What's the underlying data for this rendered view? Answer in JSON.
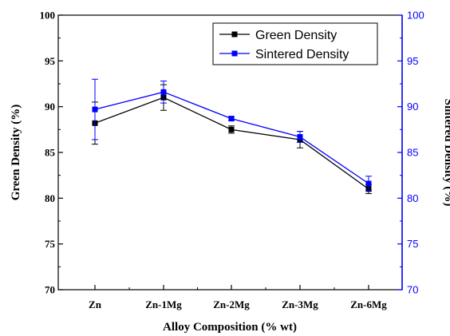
{
  "chart_data": {
    "type": "line",
    "categories": [
      "Zn",
      "Zn-1Mg",
      "Zn-2Mg",
      "Zn-3Mg",
      "Zn-6Mg"
    ],
    "xlabel": "Alloy Composition (% wt)",
    "ylabel_left": "Green Density (%)",
    "ylabel_right": "Sintered Density (%)",
    "ylim": [
      70,
      100
    ],
    "yticks": [
      70,
      75,
      80,
      85,
      90,
      95,
      100
    ],
    "legend_position": "top-right",
    "grid": false,
    "series": [
      {
        "name": "Green Density",
        "axis": "left",
        "color": "#000000",
        "marker": "square",
        "values": [
          88.2,
          91.0,
          87.5,
          86.4,
          81.0
        ],
        "errors": [
          2.3,
          1.4,
          0.4,
          0.9,
          0.5
        ]
      },
      {
        "name": "Sintered Density",
        "axis": "right",
        "color": "#0000ff",
        "marker": "square",
        "values": [
          89.7,
          91.6,
          88.7,
          86.7,
          81.6
        ],
        "errors": [
          3.3,
          1.2,
          0.2,
          0.6,
          0.8
        ]
      }
    ]
  }
}
